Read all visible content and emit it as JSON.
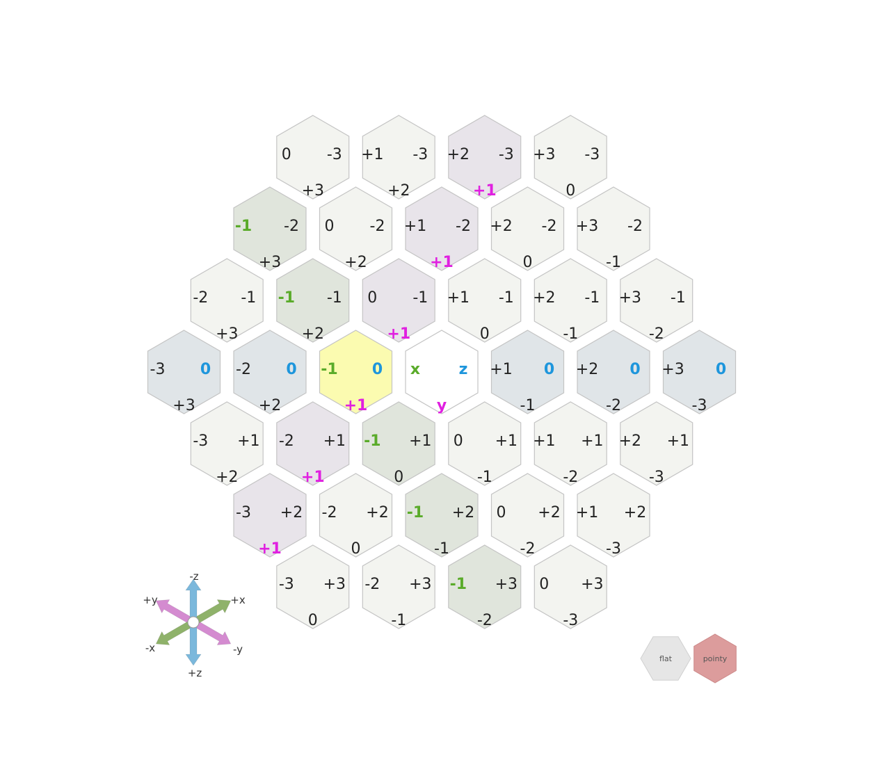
{
  "colors": {
    "default_fill": "#f3f4f0",
    "hex_stroke": "#c4c4c4",
    "x_line_fill": "#e0e5dc",
    "y_line_fill": "#e8e4ea",
    "z_line_fill": "#e0e5e8",
    "selected_fill": "#fbfbb0",
    "origin_fill": "#ffffff",
    "text_default": "#222222",
    "x_highlight": "#5aab2a",
    "y_highlight": "#e020e0",
    "z_highlight": "#1e96dc",
    "axis_x": "#8fb26a",
    "axis_y": "#d48bd0",
    "axis_z": "#7bb8dc",
    "flat_button": "#e6e6e6",
    "pointy_button": "#dc9c9c"
  },
  "grid": {
    "orientation": "pointy",
    "radius": 3,
    "selected": {
      "x": -1,
      "y": 1,
      "z": 0
    },
    "origin_labels": {
      "x": "x",
      "y": "y",
      "z": "z"
    }
  },
  "axis_legend": {
    "plus_x": "+x",
    "minus_x": "-x",
    "plus_y": "+y",
    "minus_y": "-y",
    "plus_z": "+z",
    "minus_z": "-z"
  },
  "orientation_toggle": {
    "flat_label": "flat",
    "pointy_label": "pointy",
    "active": "pointy"
  }
}
